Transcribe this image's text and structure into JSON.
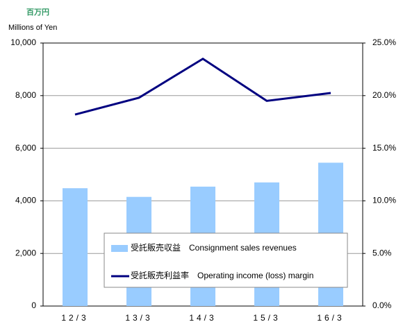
{
  "chart_data": {
    "type": "bar",
    "unit_label_jp": "百万円",
    "unit_label_en": "Millions of Yen",
    "categories": [
      "12/3",
      "13/3",
      "14/3",
      "15/3",
      "16/3"
    ],
    "series": [
      {
        "name": "受託販売収益　Consignment sales revenues",
        "type": "bar",
        "color": "#99ccff",
        "values": [
          4480,
          4150,
          4540,
          4700,
          5450
        ]
      },
      {
        "name": "受託販売利益率　Operating income (loss) margin",
        "type": "line",
        "axis": "y2",
        "color": "#000080",
        "values": [
          18.2,
          19.8,
          23.5,
          19.5,
          20.25
        ]
      }
    ],
    "ylim": [
      0,
      10000
    ],
    "yticks": [
      0,
      {
        "value": 2000,
        "label": "2,000"
      },
      {
        "value": 4000,
        "label": "4,000"
      },
      {
        "value": 6000,
        "label": "6,000"
      },
      {
        "value": 8000,
        "label": "8,000"
      },
      {
        "value": 10000,
        "label": "10,000"
      }
    ],
    "y2lim": [
      0,
      25
    ],
    "y2ticks": [
      {
        "value": 0,
        "label": "0.0%"
      },
      {
        "value": 5,
        "label": "5.0%"
      },
      {
        "value": 10,
        "label": "10.0%"
      },
      {
        "value": 15,
        "label": "15.0%"
      },
      {
        "value": 20,
        "label": "20.0%"
      },
      {
        "value": 25,
        "label": "25.0%"
      }
    ],
    "grid": true
  }
}
